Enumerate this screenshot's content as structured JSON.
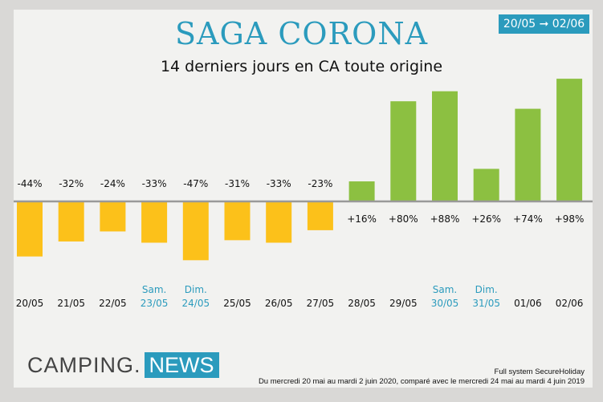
{
  "badge": "20/05 ➞ 02/06",
  "logo": {
    "left": "CAMPING.",
    "right": "NEWS"
  },
  "source": {
    "line1": "Full system SecureHoliday",
    "line2": "Du mercredi 20 mai au mardi 2 juin 2020, comparé avec le mercredi 24 mai au mardi 4 juin 2019"
  },
  "colors": {
    "negative": "#fcc11a",
    "positive": "#8cc041",
    "accent": "#2b9bbd"
  },
  "chart_data": {
    "type": "bar",
    "title": "SAGA CORONA",
    "subtitle": "14 derniers jours en CA toute origine",
    "xlabel": "",
    "ylabel": "",
    "unit": "%",
    "categories": [
      "20/05",
      "21/05",
      "22/05",
      "23/05",
      "24/05",
      "25/05",
      "26/05",
      "27/05",
      "28/05",
      "29/05",
      "30/05",
      "31/05",
      "01/06",
      "02/06"
    ],
    "day_tags": [
      "",
      "",
      "",
      "Sam.",
      "Dim.",
      "",
      "",
      "",
      "",
      "",
      "Sam.",
      "Dim.",
      "",
      ""
    ],
    "values": [
      -44,
      -32,
      -24,
      -33,
      -47,
      -31,
      -33,
      -23,
      16,
      80,
      88,
      26,
      74,
      98
    ],
    "labels": [
      "-44%",
      "-32%",
      "-24%",
      "-33%",
      "-47%",
      "-31%",
      "-33%",
      "-23%",
      "+16%",
      "+80%",
      "+88%",
      "+26%",
      "+74%",
      "+98%"
    ],
    "grid": false
  }
}
